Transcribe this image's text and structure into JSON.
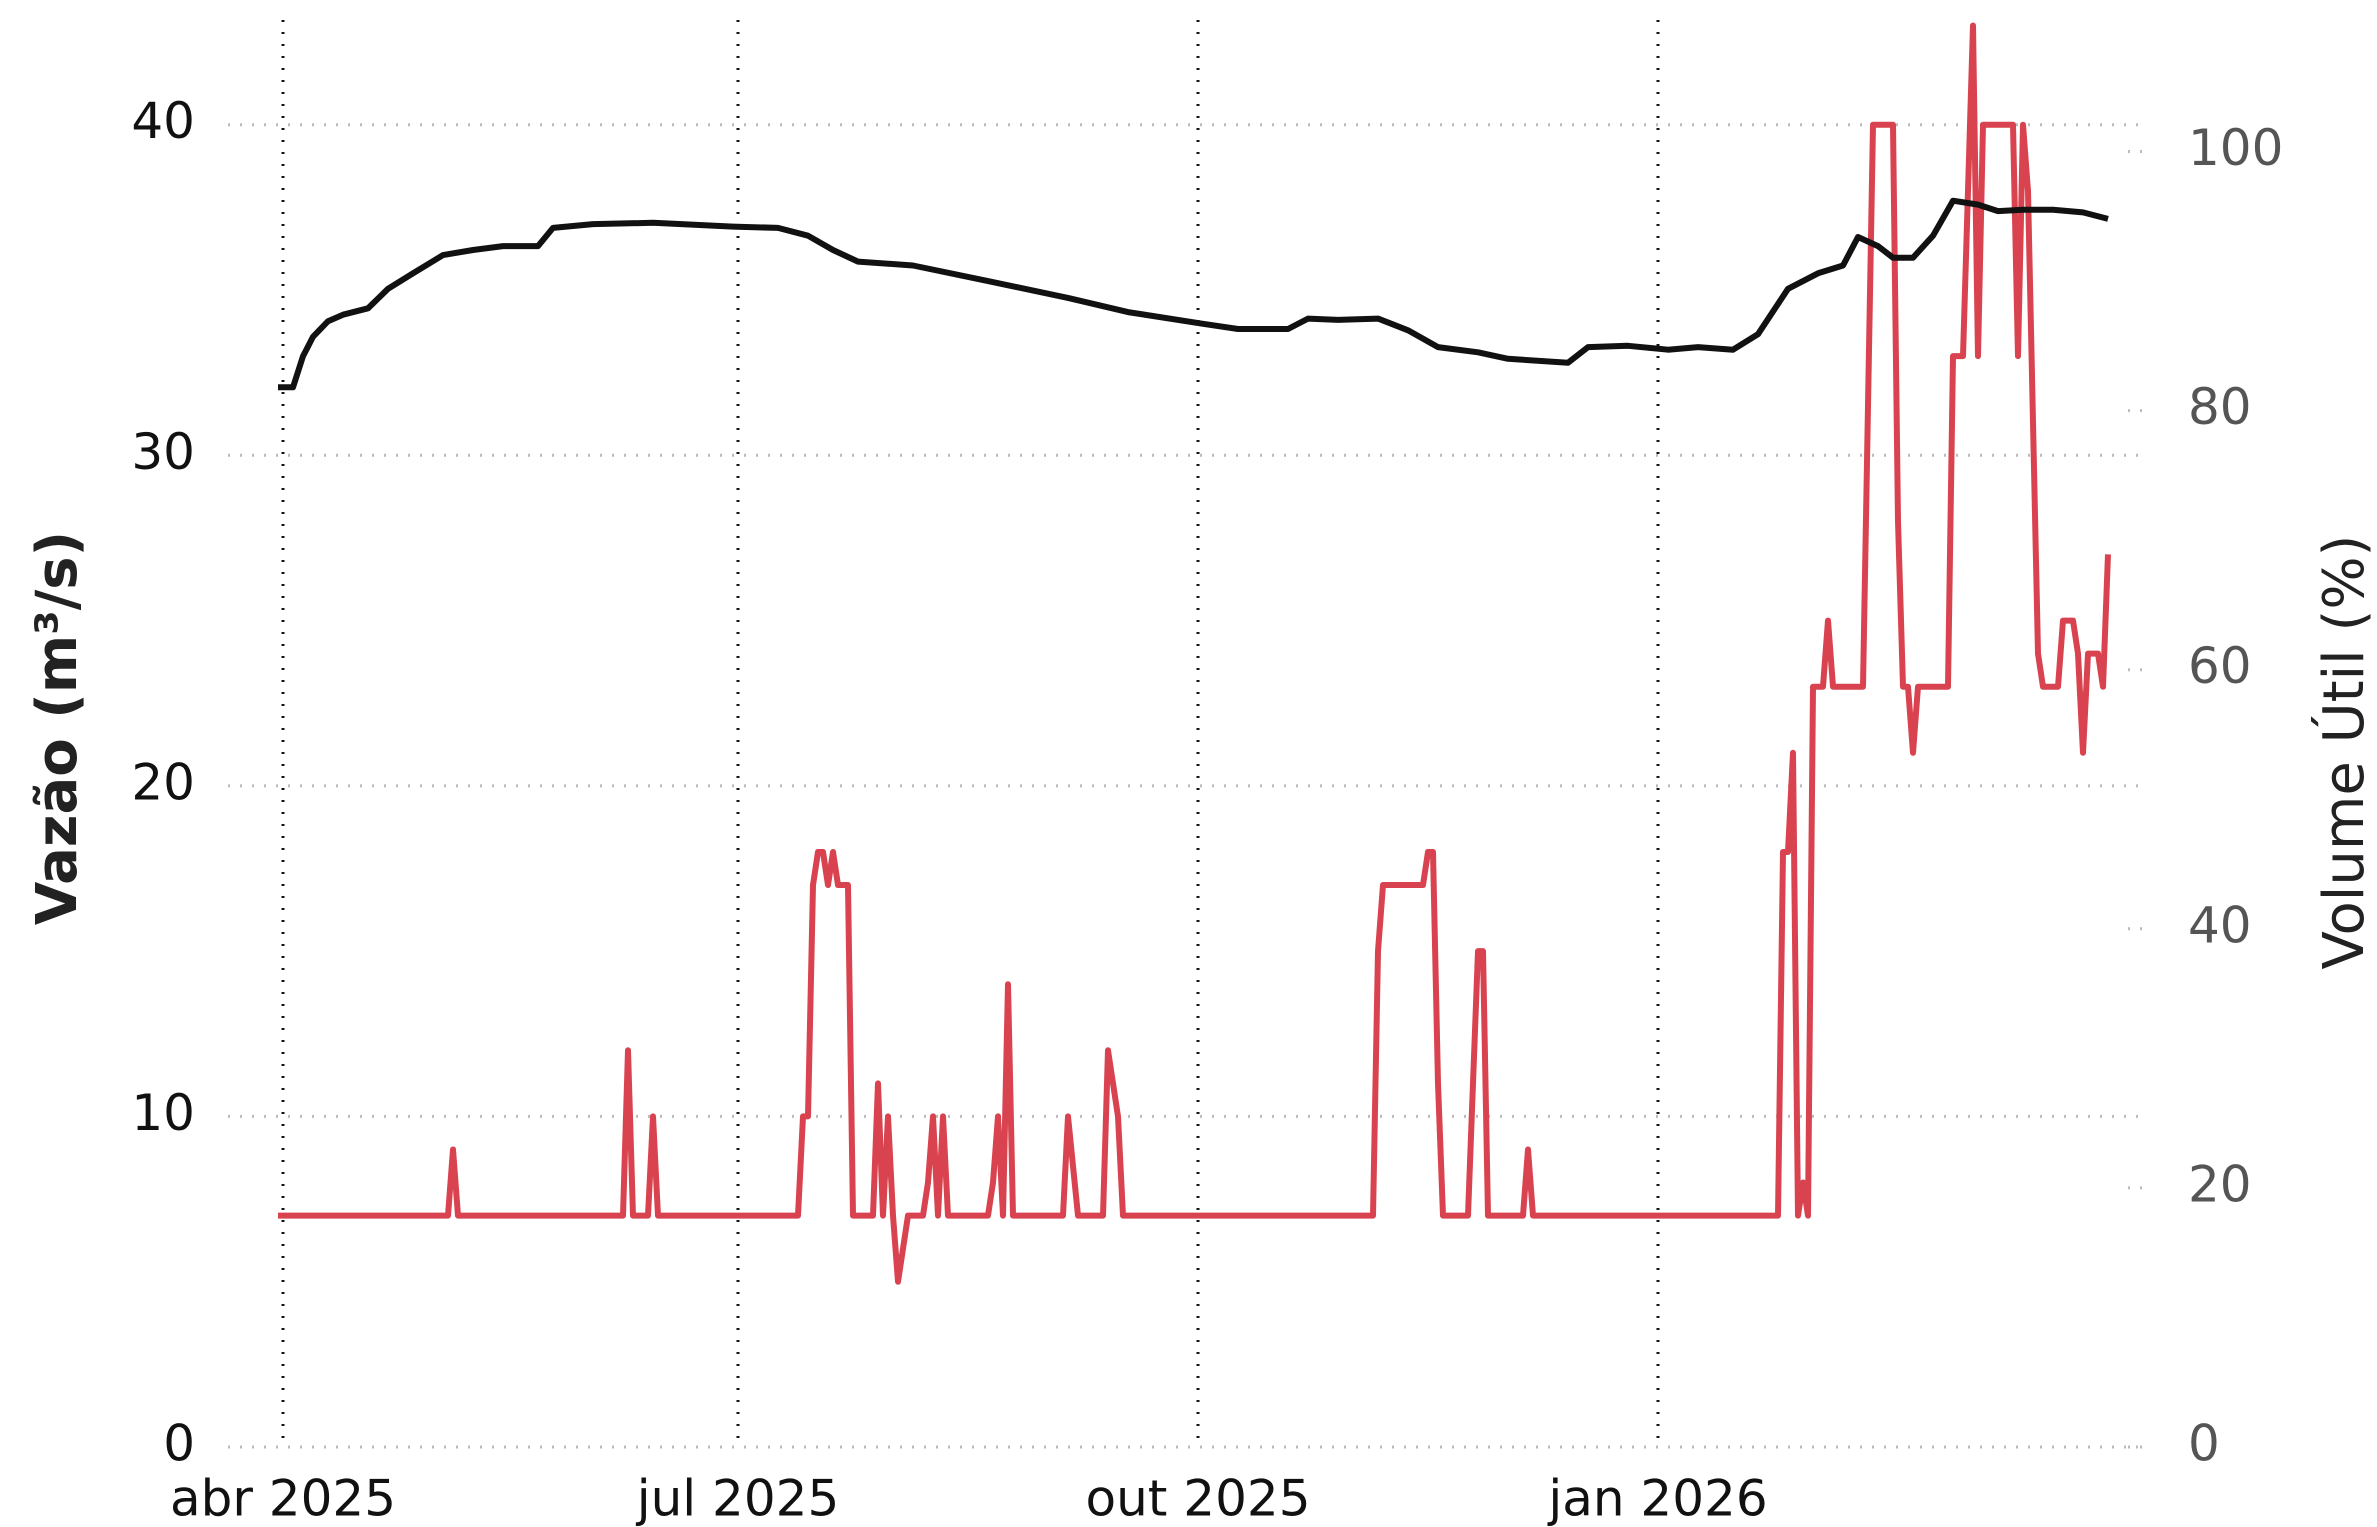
{
  "chart_data": {
    "type": "line",
    "y_label": "Vazão (m³/s)",
    "y2_label": "Volume Útil (%)",
    "xlim": [
      -11,
      372
    ],
    "xticks": [
      {
        "value": 0,
        "label": "abr 2025"
      },
      {
        "value": 91,
        "label": "jul 2025"
      },
      {
        "value": 183,
        "label": "out 2025"
      },
      {
        "value": 275,
        "label": "jan 2026"
      }
    ],
    "ylim": [
      0,
      43.5
    ],
    "yticks": [
      0,
      10,
      20,
      30,
      40
    ],
    "y2lim": [
      0,
      111
    ],
    "y2ticks": [
      0,
      20,
      40,
      60,
      80,
      100
    ],
    "grid": true,
    "series": [
      {
        "color": "#d9434f",
        "axis": "y",
        "x": [
          -1,
          33,
          34,
          35,
          68,
          69,
          70,
          73,
          74,
          75,
          103,
          104,
          105,
          106,
          107,
          108,
          109,
          110,
          111,
          113,
          114,
          118,
          119,
          120,
          121,
          122,
          123,
          125,
          128,
          129,
          130,
          131,
          132,
          133,
          141,
          142,
          143,
          144,
          145,
          146,
          156,
          157,
          159,
          164,
          165,
          167,
          168,
          218,
          219,
          220,
          228,
          229,
          230,
          231,
          232,
          237,
          239,
          240,
          241,
          248,
          249,
          250,
          299,
          300,
          301,
          302,
          303,
          304,
          305,
          306,
          308,
          309,
          310,
          316,
          318,
          322,
          323,
          324,
          325,
          326,
          327,
          333,
          334,
          336,
          338,
          339,
          340,
          346,
          347,
          348,
          349,
          351,
          352,
          355,
          356,
          358,
          359,
          360,
          361,
          363,
          364,
          365
        ],
        "values": [
          7,
          7,
          9,
          7,
          7,
          12,
          7,
          7,
          10,
          7,
          7,
          10,
          10,
          17,
          18,
          18,
          17,
          18,
          17,
          17,
          7,
          7,
          11,
          7,
          10,
          7,
          5,
          7,
          7,
          8,
          10,
          7,
          10,
          7,
          7,
          8,
          10,
          7,
          14,
          7,
          7,
          10,
          7,
          7,
          12,
          10,
          7,
          7,
          15,
          17,
          17,
          18,
          18,
          11,
          7,
          7,
          15,
          15,
          7,
          7,
          9,
          7,
          7,
          18,
          18,
          21,
          7,
          8,
          7,
          23,
          23,
          25,
          23,
          23,
          40,
          40,
          28,
          23,
          23,
          21,
          23,
          23,
          33,
          33,
          43,
          33,
          40,
          40,
          33,
          40,
          38,
          24,
          23,
          23,
          25,
          25,
          24,
          21,
          24,
          24,
          23,
          27
        ]
      },
      {
        "color": "#111111",
        "axis": "y2",
        "x": [
          -1,
          2,
          4,
          6,
          9,
          12,
          17,
          21,
          26,
          32,
          38,
          44,
          51,
          54,
          62,
          74,
          90,
          99,
          105,
          110,
          115,
          126,
          141,
          157,
          169,
          184,
          191,
          201,
          205,
          211,
          219,
          225,
          231,
          239,
          245,
          257,
          261,
          269,
          277,
          283,
          290,
          295,
          301,
          307,
          312,
          315,
          319,
          322,
          326,
          330,
          334,
          339,
          343,
          348,
          354,
          360,
          365
        ],
        "values": [
          81.8,
          81.8,
          84.2,
          85.7,
          86.9,
          87.4,
          87.9,
          89.4,
          90.6,
          92.0,
          92.4,
          92.7,
          92.7,
          94.1,
          94.4,
          94.5,
          94.2,
          94.1,
          93.5,
          92.4,
          91.5,
          91.2,
          90.0,
          88.7,
          87.6,
          86.7,
          86.3,
          86.3,
          87.1,
          87.0,
          87.1,
          86.2,
          84.9,
          84.5,
          84.0,
          83.7,
          84.9,
          85.0,
          84.7,
          84.9,
          84.7,
          85.9,
          89.4,
          90.6,
          91.2,
          93.4,
          92.7,
          91.8,
          91.8,
          93.5,
          96.2,
          95.9,
          95.4,
          95.5,
          95.5,
          95.3,
          94.8
        ]
      }
    ]
  }
}
